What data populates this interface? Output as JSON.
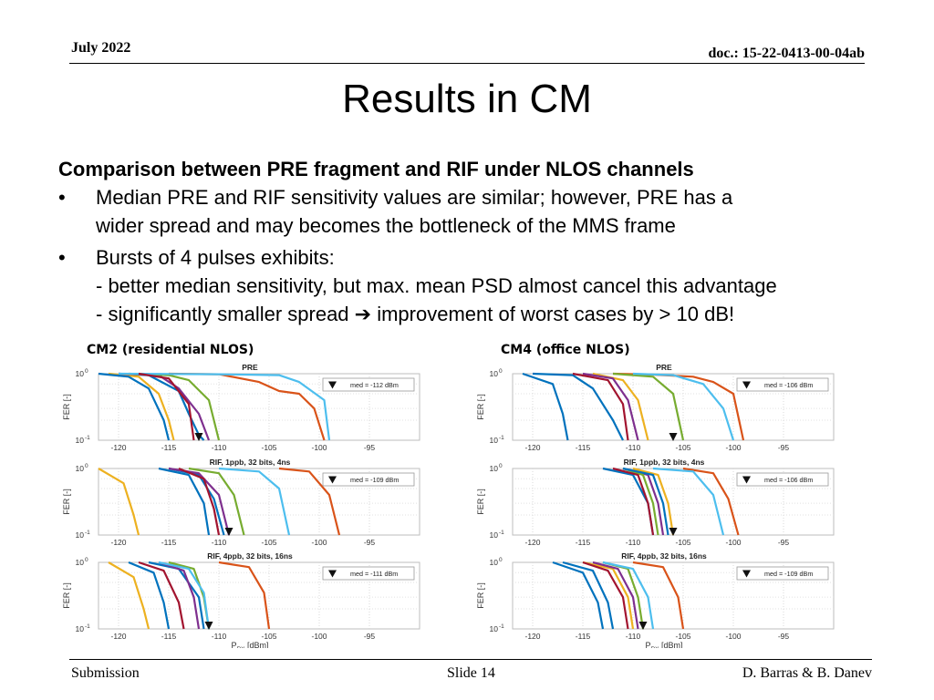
{
  "header": {
    "date": "July 2022",
    "doc": "doc.: 15-22-0413-00-04ab"
  },
  "slide": {
    "title": "Results in CM",
    "heading": "Comparison between PRE fragment and RIF under NLOS channels",
    "bullets": [
      {
        "lines": [
          "Median PRE and RIF sensitivity values are similar; however, PRE has a",
          "wider spread and may becomes the bottleneck of the MMS frame"
        ]
      },
      {
        "lines": [
          "Bursts of 4 pulses exhibits:",
          "- better median sensitivity, but max. mean PSD almost cancel this advantage",
          "- significantly smaller spread ➔ improvement of worst cases by > 10 dB!"
        ]
      }
    ],
    "left_label": "CM2 (residential NLOS)",
    "right_label": "CM4 (office NLOS)"
  },
  "colors": [
    "#0072BD",
    "#D95319",
    "#EDB120",
    "#7E2F8E",
    "#77AC30",
    "#4DBEEE",
    "#A2142F"
  ],
  "chart_data": [
    {
      "type": "line",
      "title": "PRE",
      "ylabel": "FER [-]",
      "xlabel": "",
      "xlim": [
        -122,
        -90
      ],
      "ylim": [
        0.1,
        1
      ],
      "yscale": "log",
      "xticks": [
        -120,
        -115,
        -110,
        -105,
        -100,
        -95
      ],
      "yticks_base": "10",
      "yticks_exp": [
        "0",
        "-1"
      ],
      "median_label": "med = -112 dBm",
      "median_x": -112,
      "series": [
        {
          "x": [
            -120,
            -117,
            -114,
            -113,
            -112,
            -111.5
          ],
          "y": [
            1,
            0.95,
            0.55,
            0.25,
            0.12,
            0.1
          ]
        },
        {
          "x": [
            -115,
            -110,
            -106,
            -104,
            -102,
            -100.5,
            -99.5
          ],
          "y": [
            1,
            0.98,
            0.75,
            0.55,
            0.5,
            0.3,
            0.1
          ]
        },
        {
          "x": [
            -121,
            -118,
            -116,
            -115,
            -114.5
          ],
          "y": [
            1,
            0.9,
            0.5,
            0.2,
            0.1
          ]
        },
        {
          "x": [
            -120,
            -116,
            -114,
            -112,
            -111
          ],
          "y": [
            1,
            0.95,
            0.6,
            0.25,
            0.1
          ]
        },
        {
          "x": [
            -119,
            -115,
            -113,
            -111,
            -110
          ],
          "y": [
            1,
            0.95,
            0.8,
            0.4,
            0.1
          ]
        },
        {
          "x": [
            -120,
            -110,
            -104,
            -102,
            -99.5,
            -99
          ],
          "y": [
            1,
            0.98,
            0.95,
            0.75,
            0.4,
            0.1
          ]
        },
        {
          "x": [
            -118,
            -115,
            -113,
            -112.5
          ],
          "y": [
            1,
            0.85,
            0.35,
            0.1
          ]
        },
        {
          "x": [
            -122,
            -119,
            -117,
            -115.5,
            -115
          ],
          "y": [
            1,
            0.9,
            0.6,
            0.2,
            0.1
          ]
        }
      ]
    },
    {
      "type": "line",
      "title": "PRE",
      "ylabel": "FER [-]",
      "xlabel": "",
      "xlim": [
        -122,
        -90
      ],
      "ylim": [
        0.1,
        1
      ],
      "yscale": "log",
      "xticks": [
        -120,
        -115,
        -110,
        -105,
        -100,
        -95
      ],
      "yticks_base": "10",
      "yticks_exp": [
        "0",
        "-1"
      ],
      "median_label": "med = -106 dBm",
      "median_x": -106,
      "series": [
        {
          "x": [
            -120,
            -116,
            -114,
            -112,
            -111
          ],
          "y": [
            1,
            0.95,
            0.6,
            0.2,
            0.1
          ]
        },
        {
          "x": [
            -112,
            -108,
            -104,
            -102,
            -100,
            -99
          ],
          "y": [
            1,
            0.97,
            0.9,
            0.75,
            0.5,
            0.1
          ]
        },
        {
          "x": [
            -114,
            -111,
            -109.5,
            -108.5
          ],
          "y": [
            1,
            0.8,
            0.4,
            0.1
          ]
        },
        {
          "x": [
            -115,
            -112,
            -110.5,
            -109.5
          ],
          "y": [
            1,
            0.85,
            0.4,
            0.1
          ]
        },
        {
          "x": [
            -112,
            -108,
            -106,
            -105
          ],
          "y": [
            1,
            0.9,
            0.5,
            0.1
          ]
        },
        {
          "x": [
            -110,
            -106,
            -103,
            -101,
            -100
          ],
          "y": [
            1,
            0.95,
            0.7,
            0.3,
            0.1
          ]
        },
        {
          "x": [
            -116,
            -112.5,
            -111,
            -110.5
          ],
          "y": [
            1,
            0.8,
            0.35,
            0.1
          ]
        },
        {
          "x": [
            -121,
            -118,
            -117,
            -116.5
          ],
          "y": [
            1,
            0.7,
            0.25,
            0.1
          ]
        }
      ]
    },
    {
      "type": "line",
      "title": "RIF, 1ppb, 32 bits, 4ns",
      "ylabel": "FER [-]",
      "xlabel": "",
      "xlim": [
        -122,
        -90
      ],
      "ylim": [
        0.1,
        1
      ],
      "yscale": "log",
      "xticks": [
        -120,
        -115,
        -110,
        -105,
        -100,
        -95
      ],
      "yticks_base": "10",
      "yticks_exp": [
        "0",
        "-1"
      ],
      "median_label": "med = -109 dBm",
      "median_x": -109,
      "series": [
        {
          "x": [
            -115,
            -112,
            -110.5,
            -109.5
          ],
          "y": [
            1,
            0.8,
            0.35,
            0.1
          ]
        },
        {
          "x": [
            -104,
            -101,
            -99,
            -98
          ],
          "y": [
            1,
            0.9,
            0.4,
            0.1
          ]
        },
        {
          "x": [
            -122,
            -119.5,
            -118.5,
            -118
          ],
          "y": [
            1,
            0.6,
            0.2,
            0.1
          ]
        },
        {
          "x": [
            -115,
            -112,
            -110,
            -109
          ],
          "y": [
            1,
            0.85,
            0.4,
            0.1
          ]
        },
        {
          "x": [
            -113,
            -110,
            -108.5,
            -107.5
          ],
          "y": [
            1,
            0.85,
            0.4,
            0.1
          ]
        },
        {
          "x": [
            -110,
            -106,
            -104,
            -103
          ],
          "y": [
            1,
            0.9,
            0.5,
            0.1
          ]
        },
        {
          "x": [
            -114,
            -111.5,
            -110.5,
            -110
          ],
          "y": [
            1,
            0.7,
            0.25,
            0.1
          ]
        },
        {
          "x": [
            -116,
            -113,
            -111.5,
            -111
          ],
          "y": [
            1,
            0.8,
            0.3,
            0.1
          ]
        }
      ]
    },
    {
      "type": "line",
      "title": "RIF, 1ppb, 32 bits, 4ns",
      "ylabel": "FER [-]",
      "xlabel": "",
      "xlim": [
        -122,
        -90
      ],
      "ylim": [
        0.1,
        1
      ],
      "yscale": "log",
      "xticks": [
        -120,
        -115,
        -110,
        -105,
        -100,
        -95
      ],
      "yticks_base": "10",
      "yticks_exp": [
        "0",
        "-1"
      ],
      "median_label": "med = -106 dBm",
      "median_x": -106,
      "series": [
        {
          "x": [
            -113,
            -110,
            -108.5,
            -108
          ],
          "y": [
            1,
            0.8,
            0.3,
            0.1
          ]
        },
        {
          "x": [
            -105,
            -102,
            -100.5,
            -99.5
          ],
          "y": [
            1,
            0.85,
            0.35,
            0.1
          ]
        },
        {
          "x": [
            -110,
            -107.5,
            -106.5,
            -106
          ],
          "y": [
            1,
            0.8,
            0.3,
            0.1
          ]
        },
        {
          "x": [
            -111,
            -108.5,
            -107.5,
            -107
          ],
          "y": [
            1,
            0.8,
            0.3,
            0.1
          ]
        },
        {
          "x": [
            -111,
            -109,
            -108,
            -107.5
          ],
          "y": [
            1,
            0.8,
            0.3,
            0.1
          ]
        },
        {
          "x": [
            -108,
            -104,
            -102,
            -101
          ],
          "y": [
            1,
            0.9,
            0.4,
            0.1
          ]
        },
        {
          "x": [
            -112,
            -109.5,
            -108.5,
            -108
          ],
          "y": [
            1,
            0.8,
            0.3,
            0.1
          ]
        },
        {
          "x": [
            -111,
            -108,
            -107,
            -106.5
          ],
          "y": [
            1,
            0.8,
            0.3,
            0.1
          ]
        }
      ]
    },
    {
      "type": "line",
      "title": "RIF, 4ppb, 32 bits, 16ns",
      "ylabel": "FER [-]",
      "xlabel": "P_RX [dBm]",
      "xlim": [
        -122,
        -90
      ],
      "ylim": [
        0.1,
        1
      ],
      "yscale": "log",
      "xticks": [
        -120,
        -115,
        -110,
        -105,
        -100,
        -95
      ],
      "yticks_base": "10",
      "yticks_exp": [
        "0",
        "-1"
      ],
      "median_label": "med = -111 dBm",
      "median_x": -111,
      "series": [
        {
          "x": [
            -117,
            -114,
            -112,
            -111.5
          ],
          "y": [
            1,
            0.8,
            0.3,
            0.1
          ]
        },
        {
          "x": [
            -110,
            -107,
            -105.5,
            -105
          ],
          "y": [
            1,
            0.85,
            0.35,
            0.1
          ]
        },
        {
          "x": [
            -121,
            -118.5,
            -117.5,
            -117
          ],
          "y": [
            1,
            0.6,
            0.2,
            0.1
          ]
        },
        {
          "x": [
            -116,
            -113.5,
            -112.5,
            -112
          ],
          "y": [
            1,
            0.75,
            0.3,
            0.1
          ]
        },
        {
          "x": [
            -115,
            -112.5,
            -111.5,
            -111
          ],
          "y": [
            1,
            0.8,
            0.3,
            0.1
          ]
        },
        {
          "x": [
            -116,
            -113,
            -111.5,
            -111
          ],
          "y": [
            1,
            0.8,
            0.35,
            0.1
          ]
        },
        {
          "x": [
            -118,
            -115.5,
            -114,
            -113.5
          ],
          "y": [
            1,
            0.75,
            0.25,
            0.1
          ]
        },
        {
          "x": [
            -119,
            -116.5,
            -115.5,
            -115
          ],
          "y": [
            1,
            0.7,
            0.25,
            0.1
          ]
        }
      ]
    },
    {
      "type": "line",
      "title": "RIF, 4ppb, 32 bits, 16ns",
      "ylabel": "FER [-]",
      "xlabel": "P_RX [dBm]",
      "xlim": [
        -122,
        -90
      ],
      "ylim": [
        0.1,
        1
      ],
      "yscale": "log",
      "xticks": [
        -120,
        -115,
        -110,
        -105,
        -100,
        -95
      ],
      "yticks_base": "10",
      "yticks_exp": [
        "0",
        "-1"
      ],
      "median_label": "med = -109 dBm",
      "median_x": -109,
      "series": [
        {
          "x": [
            -117,
            -114,
            -112.5,
            -112
          ],
          "y": [
            1,
            0.75,
            0.25,
            0.1
          ]
        },
        {
          "x": [
            -110,
            -107,
            -105.5,
            -105
          ],
          "y": [
            1,
            0.85,
            0.3,
            0.1
          ]
        },
        {
          "x": [
            -115,
            -112,
            -110.5,
            -110
          ],
          "y": [
            1,
            0.8,
            0.3,
            0.1
          ]
        },
        {
          "x": [
            -114,
            -111.5,
            -110,
            -109.5
          ],
          "y": [
            1,
            0.8,
            0.3,
            0.1
          ]
        },
        {
          "x": [
            -113,
            -110.5,
            -109.5,
            -109
          ],
          "y": [
            1,
            0.8,
            0.3,
            0.1
          ]
        },
        {
          "x": [
            -113,
            -110,
            -108.5,
            -108
          ],
          "y": [
            1,
            0.8,
            0.3,
            0.1
          ]
        },
        {
          "x": [
            -115,
            -112.5,
            -111,
            -110.5
          ],
          "y": [
            1,
            0.75,
            0.3,
            0.1
          ]
        },
        {
          "x": [
            -118,
            -115,
            -113.5,
            -113
          ],
          "y": [
            1,
            0.7,
            0.25,
            0.1
          ]
        }
      ]
    }
  ],
  "footer": {
    "left": "Submission",
    "center": "Slide 14",
    "right": "D. Barras & B. Danev"
  }
}
